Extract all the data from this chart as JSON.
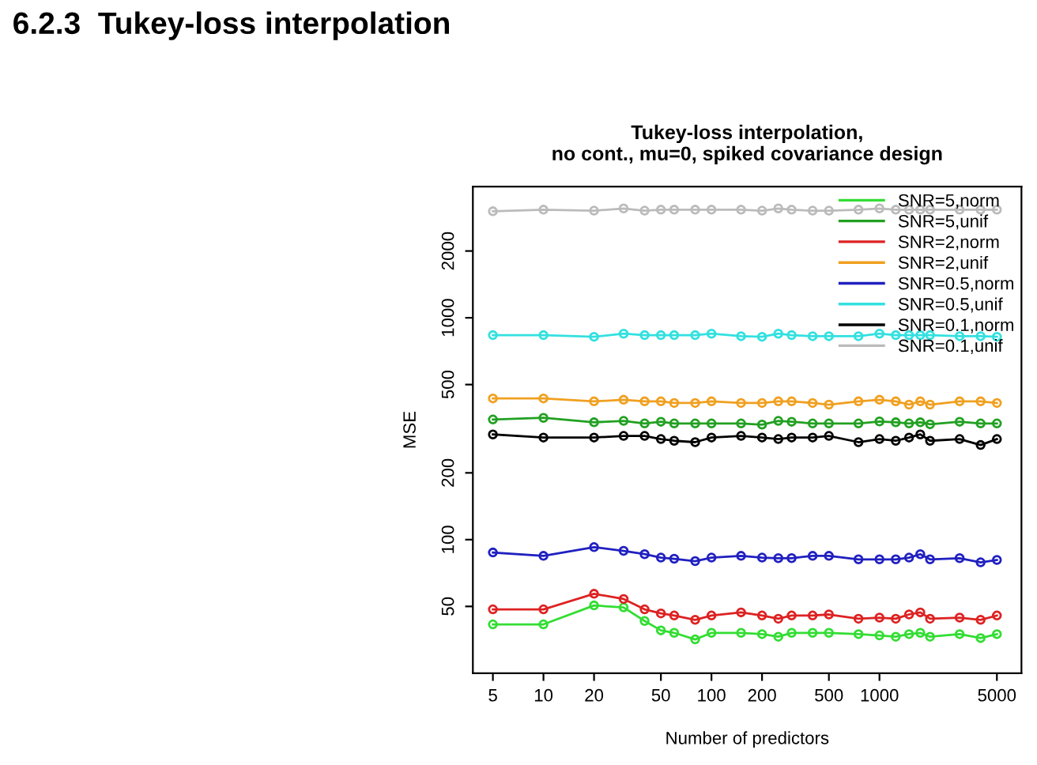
{
  "chart_data": {
    "type": "line",
    "title": "Tukey-loss interpolation,\nno cont., mu=0, spiked covariance design",
    "xlabel": "Number of predictors",
    "ylabel": "MSE",
    "annotations": [
      "6.2.3  Tukey-loss interpolation"
    ],
    "x": [
      5,
      10,
      20,
      30,
      40,
      50,
      60,
      80,
      100,
      150,
      200,
      250,
      300,
      400,
      500,
      750,
      1000,
      1250,
      1500,
      1750,
      2000,
      3000,
      4000,
      5000
    ],
    "series": [
      {
        "name": "SNR=5,norm",
        "color": "#33dd33",
        "values": [
          41.5,
          41.5,
          50.5,
          49.5,
          43,
          39,
          38,
          35.5,
          38,
          38,
          37.5,
          36.5,
          38,
          38,
          38,
          37.5,
          37,
          36.5,
          37.5,
          38,
          36.5,
          37.5,
          36,
          37.5
        ]
      },
      {
        "name": "SNR=5,unif",
        "color": "#22a022",
        "values": [
          348,
          354,
          338,
          343,
          334,
          340,
          334,
          334,
          334,
          334,
          330,
          343,
          340,
          334,
          334,
          334,
          341,
          338,
          334,
          338,
          331,
          340,
          334,
          334
        ]
      },
      {
        "name": "SNR=2,norm",
        "color": "#dd2222",
        "values": [
          48.5,
          48.5,
          57,
          54,
          48.5,
          46.5,
          45.5,
          43.5,
          45.5,
          47,
          45.5,
          44,
          45.5,
          45.5,
          46,
          44,
          44.5,
          44,
          46,
          47,
          44,
          44.5,
          43.5,
          45.5
        ]
      },
      {
        "name": "SNR=2,unif",
        "color": "#f0a020",
        "values": [
          433,
          433,
          420,
          427,
          420,
          420,
          413,
          413,
          420,
          413,
          413,
          420,
          420,
          413,
          406,
          420,
          427,
          420,
          406,
          420,
          406,
          420,
          420,
          413
        ]
      },
      {
        "name": "SNR=0.5,norm",
        "color": "#2020c0",
        "values": [
          87.5,
          84.5,
          92.5,
          89,
          86,
          83,
          82,
          80,
          83,
          84.5,
          83,
          82.5,
          82.5,
          84.5,
          84.5,
          81.5,
          81.5,
          81.5,
          83,
          86,
          81.5,
          82.5,
          79,
          81
        ]
      },
      {
        "name": "SNR=0.5,unif",
        "color": "#33e0e0",
        "values": [
          835,
          835,
          821,
          848,
          835,
          835,
          835,
          835,
          848,
          826,
          821,
          848,
          835,
          826,
          826,
          826,
          848,
          835,
          835,
          835,
          835,
          826,
          826,
          821
        ]
      },
      {
        "name": "SNR=0.1,norm",
        "color": "#000000",
        "values": [
          298,
          288.5,
          288.5,
          293.5,
          293.5,
          284,
          279,
          275,
          288.5,
          293.5,
          288.5,
          284,
          288.5,
          288.5,
          293.5,
          275,
          284,
          279,
          288.5,
          298,
          279,
          284,
          267,
          284
        ]
      },
      {
        "name": "SNR=0.1,unif",
        "color": "#bbbbbb",
        "values": [
          3020,
          3070,
          3040,
          3110,
          3040,
          3070,
          3070,
          3070,
          3070,
          3070,
          3040,
          3110,
          3070,
          3040,
          3040,
          3070,
          3110,
          3070,
          3070,
          3070,
          3070,
          3070,
          3070,
          3070
        ]
      }
    ],
    "log": "xy",
    "xlim": [
      3.8,
      7000
    ],
    "ylim": [
      25,
      3900
    ],
    "xticks": [
      5,
      10,
      20,
      50,
      100,
      200,
      500,
      1000,
      5000
    ],
    "yticks": [
      50,
      100,
      200,
      500,
      1000,
      2000
    ],
    "marker": "circle",
    "line_style": "solid",
    "grid": false,
    "legend": "top right"
  }
}
